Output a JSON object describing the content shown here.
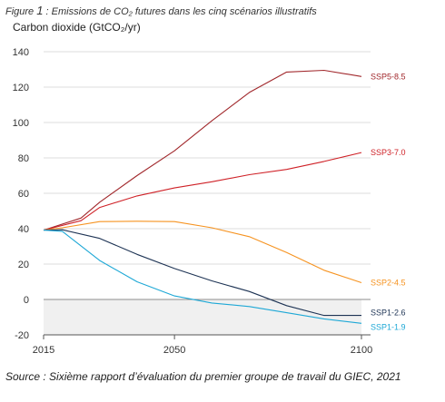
{
  "caption": {
    "prefix": "Figure ",
    "number": "1",
    "text": " : Emissions de CO₂ futures dans les cinq scénarios illustratifs"
  },
  "source": "Source : Sixième rapport d’évaluation du premier groupe de travail du GIEC, 2021",
  "chart_data": {
    "type": "line",
    "title": "",
    "xlabel": "",
    "ylabel": "Carbon dioxide (GtCO₂/yr)",
    "xlim": [
      2015,
      2100
    ],
    "ylim": [
      -20,
      140
    ],
    "x_ticks": [
      2015,
      2050,
      2100
    ],
    "y_ticks": [
      -20,
      0,
      20,
      40,
      60,
      80,
      100,
      120,
      140
    ],
    "grid": "horizontal",
    "negative_region_shaded": true,
    "series": [
      {
        "name": "SSP5-8.5",
        "color": "#a1282c",
        "x": [
          2015,
          2025,
          2030,
          2040,
          2050,
          2060,
          2070,
          2080,
          2090,
          2100
        ],
        "y": [
          39.2,
          46,
          55,
          70,
          84,
          101,
          117,
          128.5,
          129.5,
          126
        ]
      },
      {
        "name": "SSP3-7.0",
        "color": "#cf2127",
        "x": [
          2015,
          2025,
          2030,
          2040,
          2050,
          2060,
          2070,
          2080,
          2090,
          2100
        ],
        "y": [
          39.2,
          44.5,
          52,
          58.5,
          63,
          66.5,
          70.5,
          73.5,
          78,
          83
        ]
      },
      {
        "name": "SSP2-4.5",
        "color": "#f69320",
        "x": [
          2015,
          2020,
          2030,
          2040,
          2050,
          2060,
          2070,
          2080,
          2090,
          2100
        ],
        "y": [
          39.2,
          40.5,
          44,
          44.2,
          44,
          40.5,
          35.5,
          26.5,
          16.5,
          9.5
        ]
      },
      {
        "name": "SSP1-2.6",
        "color": "#1d3354",
        "x": [
          2015,
          2020,
          2030,
          2040,
          2050,
          2060,
          2070,
          2080,
          2090,
          2100
        ],
        "y": [
          39.2,
          39.4,
          34.5,
          25.5,
          17.5,
          10.5,
          4.5,
          -3.5,
          -9,
          -9
        ]
      },
      {
        "name": "SSP1-1.9",
        "color": "#1ea8d6",
        "x": [
          2015,
          2020,
          2030,
          2040,
          2050,
          2060,
          2070,
          2080,
          2090,
          2100
        ],
        "y": [
          39.2,
          38.5,
          22,
          10,
          2,
          -2,
          -4,
          -7.5,
          -11,
          -13.5
        ]
      }
    ]
  }
}
